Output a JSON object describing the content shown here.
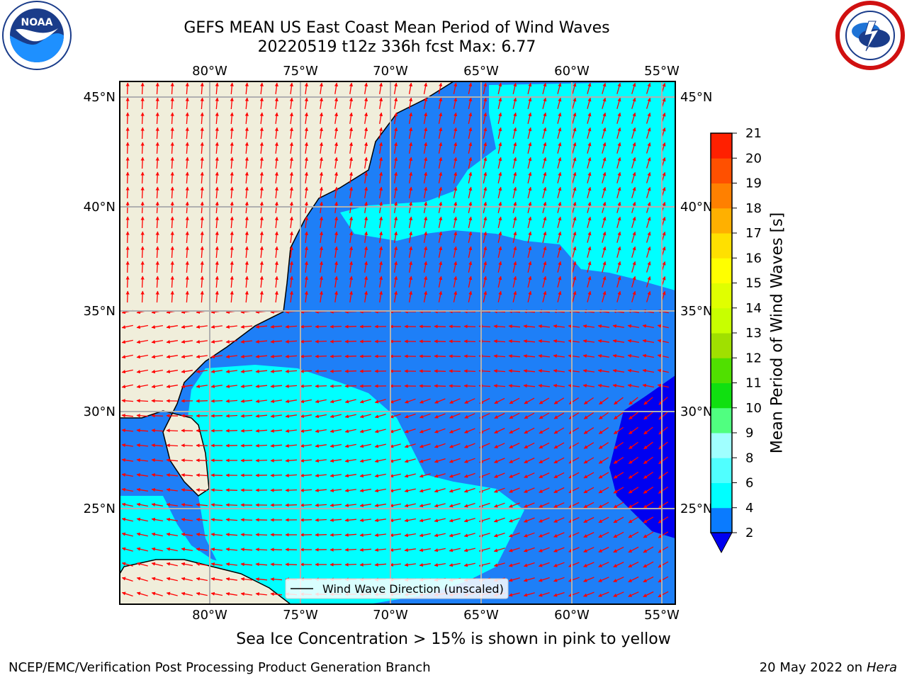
{
  "title": {
    "line1": "GEFS MEAN US East Coast Mean Period of Wind Waves",
    "line2": "20220519 t12z 336h fcst   Max: 6.77"
  },
  "logos": {
    "left": "noaa-logo",
    "right": "nws-logo",
    "left_text": "NOAA"
  },
  "map": {
    "lon_ticks": [
      "80°W",
      "75°W",
      "70°W",
      "65°W",
      "60°W",
      "55°W"
    ],
    "lat_ticks": [
      "45°N",
      "40°N",
      "35°N",
      "30°N",
      "25°N"
    ],
    "legend": "Wind Wave Direction (unscaled)",
    "colors": {
      "land": "#f0eedb",
      "cyan": "#00ffff",
      "mid_blue": "#1e7ff7",
      "dark_blue": "#0000f0",
      "arrow": "#ff0000",
      "grid": "#b0b0b0"
    }
  },
  "colorbar": {
    "label": "Mean Period of Wind Waves [s]",
    "ticks": [
      "2",
      "4",
      "6",
      "8",
      "9",
      "10",
      "11",
      "12",
      "13",
      "14",
      "15",
      "16",
      "17",
      "18",
      "19",
      "20",
      "21"
    ],
    "colors": [
      "#0a7bff",
      "#00ffff",
      "#50ffff",
      "#a0ffff",
      "#50ff80",
      "#10e010",
      "#50e000",
      "#a0e000",
      "#c8ff00",
      "#e0ff00",
      "#ffff00",
      "#ffe000",
      "#ffb000",
      "#ff8000",
      "#ff5000",
      "#ff2000",
      "#ff0000"
    ],
    "extend_color": "#0000f0"
  },
  "footer": {
    "note": "Sea Ice Concentration > 15% is shown in pink to yellow",
    "credit": "NCEP/EMC/Verification Post Processing Product Generation Branch",
    "date": "20 May 2022 on",
    "host": "Hera"
  }
}
